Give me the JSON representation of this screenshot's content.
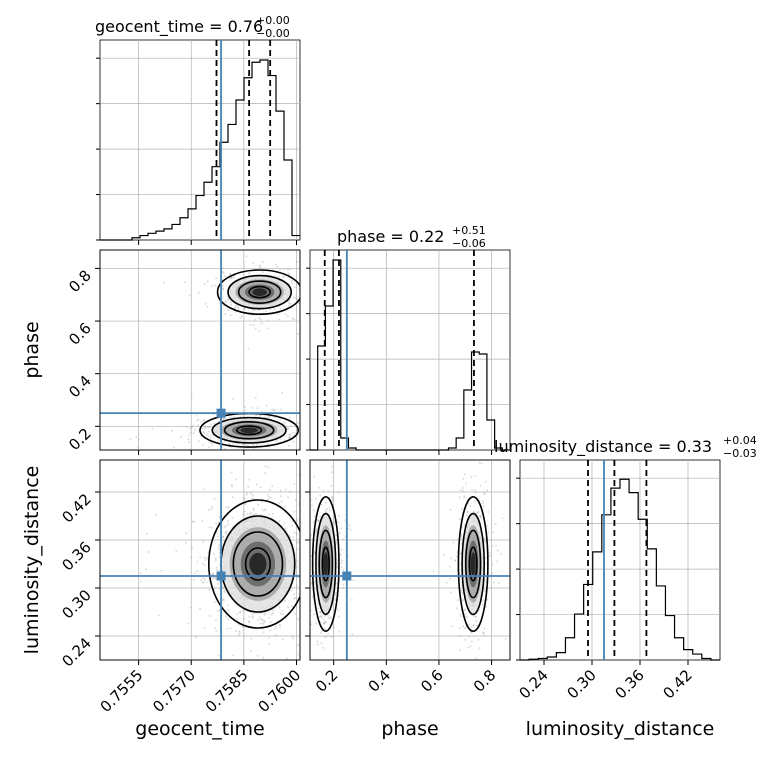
{
  "figure": {
    "titles": {
      "geocent_time": "geocent_time = 0.76",
      "geocent_time_up": "+0.00",
      "geocent_time_dn": "−0.00",
      "phase": "phase = 0.22",
      "phase_up": "+0.51",
      "phase_dn": "−0.06",
      "luminosity_distance": "luminosity_distance = 0.33",
      "luminosity_distance_up": "+0.04",
      "luminosity_distance_dn": "−0.03"
    },
    "axis_labels": {
      "x_geocent_time": "geocent_time",
      "x_phase": "phase",
      "x_luminosity_distance": "luminosity_distance",
      "y_phase": "phase",
      "y_luminosity_distance": "luminosity_distance"
    }
  },
  "chart_data": {
    "type": "corner",
    "parameters": [
      "geocent_time",
      "phase",
      "luminosity_distance"
    ],
    "colors": {
      "histogram": "#000000",
      "truth": "#4682b4",
      "contour": "#000000",
      "samples": "#9e9e9e",
      "grid": "#b0b0b0"
    },
    "truth": {
      "geocent_time": 0.75785,
      "phase": 0.25,
      "luminosity_distance": 0.315
    },
    "ranges": {
      "geocent_time": [
        0.7544,
        0.7601
      ],
      "phase": [
        0.11,
        0.87
      ],
      "luminosity_distance": [
        0.21,
        0.46
      ]
    },
    "ticks": {
      "geocent_time": {
        "values": [
          0.7555,
          0.757,
          0.7585,
          0.76
        ],
        "labels": [
          "0.7555",
          "0.7570",
          "0.7585",
          "0.7600"
        ]
      },
      "phase": {
        "values": [
          0.2,
          0.4,
          0.6,
          0.8
        ],
        "labels": [
          "0.2",
          "0.4",
          "0.6",
          "0.8"
        ]
      },
      "luminosity_distance": {
        "values": [
          0.24,
          0.3,
          0.36,
          0.42
        ],
        "labels": [
          "0.24",
          "0.30",
          "0.36",
          "0.42"
        ]
      }
    },
    "histograms": {
      "geocent_time": {
        "x_start": 0.7544,
        "x_end": 0.7601,
        "counts": [
          0,
          0,
          0,
          0,
          1,
          2,
          3,
          4,
          5,
          7,
          10,
          14,
          20,
          26,
          33,
          44,
          52,
          63,
          73,
          80,
          81,
          74,
          58,
          36,
          2
        ],
        "ymax": 90,
        "quantiles": [
          0.75772,
          0.75865,
          0.75925
        ]
      },
      "phase": {
        "x_start": 0.11,
        "x_end": 0.87,
        "counts": [
          0,
          52,
          72,
          95,
          6,
          1,
          0,
          0,
          0,
          0,
          0,
          0,
          0,
          0,
          0,
          0,
          0,
          0,
          1,
          6,
          30,
          49,
          48,
          15,
          1,
          0
        ],
        "ymax": 100,
        "quantiles": [
          0.166,
          0.22,
          0.733
        ]
      },
      "luminosity_distance": {
        "x_start": 0.21,
        "x_end": 0.46,
        "counts": [
          0,
          0.5,
          1,
          2,
          5,
          15,
          31,
          51,
          73,
          98,
          116,
          122,
          113,
          95,
          75,
          50,
          30,
          15,
          7,
          4,
          1,
          0
        ],
        "ymax": 135,
        "quantiles": [
          0.295,
          0.328,
          0.368
        ]
      }
    },
    "pairs": [
      {
        "x": "geocent_time",
        "y": "phase",
        "modes": [
          {
            "cx": 0.75895,
            "cy": 0.71,
            "sx": 0.0006,
            "sy": 0.042,
            "weight": 0.45
          },
          {
            "cx": 0.75865,
            "cy": 0.185,
            "sx": 0.0007,
            "sy": 0.032,
            "weight": 0.55
          }
        ]
      },
      {
        "x": "geocent_time",
        "y": "luminosity_distance",
        "modes": [
          {
            "cx": 0.7589,
            "cy": 0.33,
            "sx": 0.0007,
            "sy": 0.04,
            "weight": 1.0
          }
        ]
      },
      {
        "x": "phase",
        "y": "luminosity_distance",
        "modes": [
          {
            "cx": 0.17,
            "cy": 0.33,
            "sx": 0.025,
            "sy": 0.042,
            "weight": 0.5
          },
          {
            "cx": 0.73,
            "cy": 0.33,
            "sx": 0.028,
            "sy": 0.042,
            "weight": 0.5
          }
        ]
      }
    ]
  }
}
